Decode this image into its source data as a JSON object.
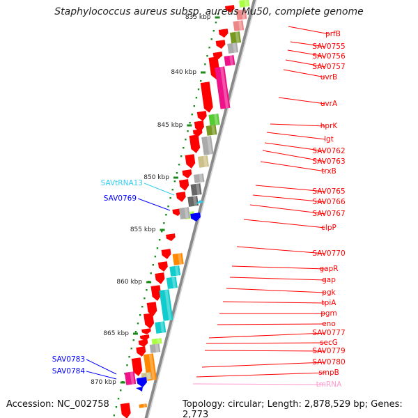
{
  "title": "Staphylococcus aureus subsp. aureus Mu50, complete genome",
  "footer": {
    "accession": "Accession: NC_002758",
    "topology": "Topology: circular; Length: 2,878,529 bp; Genes: 2,773"
  },
  "ruler_labels": [
    "835 kbp",
    "840 kbp",
    "845 kbp",
    "850 kbp",
    "855 kbp",
    "860 kbp",
    "865 kbp",
    "870 kbp"
  ],
  "colors": {
    "backbone": "#8a8a8a",
    "tick": "#1a8a1a",
    "cds_forward": "#ff0000",
    "cds_reverse": "#0000ff",
    "trna": "#33ccee",
    "tmrna": "#ff99cc",
    "cog_magenta": "#ee1188",
    "cog_cyan": "#11cccc",
    "cog_orange": "#ff8800",
    "cog_green": "#55cc33",
    "cog_olive": "#779922",
    "cog_gray": "#aaaaaa",
    "cog_darkgray": "#666666",
    "cog_khaki": "#ccc088",
    "cog_salmon": "#ee8888",
    "cog_lime": "#aaff44"
  },
  "genes_right": [
    "prfB",
    "SAV0755",
    "SAV0756",
    "SAV0757",
    "uvrB",
    "uvrA",
    "hprK",
    "lgt",
    "SAV0762",
    "SAV0763",
    "trxB",
    "SAV0765",
    "SAV0766",
    "SAV0767",
    "clpP",
    "SAV0770",
    "gapR",
    "gap",
    "pgk",
    "tpiA",
    "pgm",
    "eno",
    "SAV0777",
    "secG",
    "SAV0779",
    "SAV0780",
    "smpB",
    "tmRNA"
  ],
  "genes_left": [
    "SAVtRNA13",
    "SAV0769",
    "SAV0783",
    "SAV0784"
  ],
  "icons": [
    "cds-arrow-icon"
  ]
}
